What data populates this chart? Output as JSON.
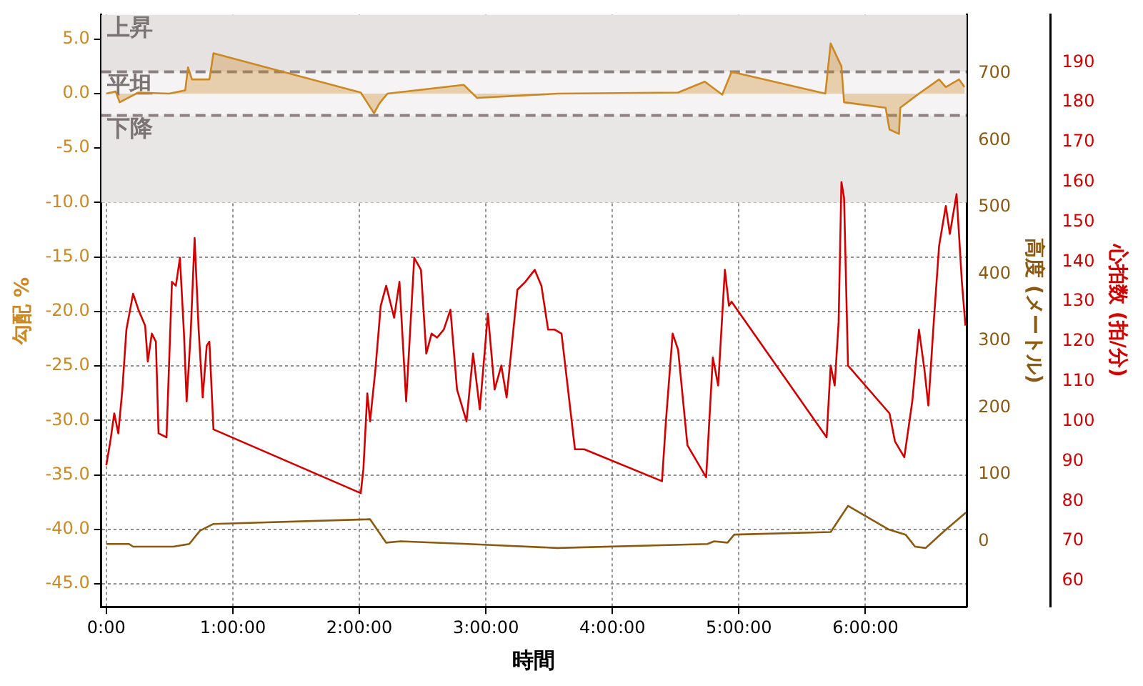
{
  "chart_data": {
    "type": "line",
    "xlabel": "時間",
    "ylabel": "勾配 %",
    "y2label": "高度 (メートル)",
    "y3label": "心拍数 (拍/分)",
    "xlim": [
      -0.04,
      6.8
    ],
    "xticks": [
      {
        "value": 0,
        "label": "0:00"
      },
      {
        "value": 1,
        "label": "1:00:00"
      },
      {
        "value": 2,
        "label": "2:00:00"
      },
      {
        "value": 3,
        "label": "3:00:00"
      },
      {
        "value": 4,
        "label": "4:00:00"
      },
      {
        "value": 5,
        "label": "5:00:00"
      },
      {
        "value": 6,
        "label": "6:00:00"
      }
    ],
    "ylim": [
      -47.1,
      7.25
    ],
    "yticks": [
      {
        "value": 5,
        "label": "5.0"
      },
      {
        "value": 0,
        "label": "0.0"
      },
      {
        "value": -5,
        "label": "-5.0"
      },
      {
        "value": -10,
        "label": "-10.0"
      },
      {
        "value": -15,
        "label": "-15.0"
      },
      {
        "value": -20,
        "label": "-20.0"
      },
      {
        "value": -25,
        "label": "-25.0"
      },
      {
        "value": -30,
        "label": "-30.0"
      },
      {
        "value": -35,
        "label": "-35.0"
      },
      {
        "value": -40,
        "label": "-40.0"
      },
      {
        "value": -45,
        "label": "-45.0"
      }
    ],
    "y2lim": [
      -98,
      788
    ],
    "y2ticks": [
      0,
      100,
      200,
      300,
      400,
      500,
      600,
      700
    ],
    "y3lim": [
      53.5,
      202
    ],
    "y3ticks": [
      60,
      70,
      80,
      90,
      100,
      110,
      120,
      130,
      140,
      150,
      160,
      170,
      180,
      190
    ],
    "grid": true,
    "legend": false,
    "marker": "none",
    "bands": [
      {
        "axis": "y",
        "from": 2,
        "to": 7.25,
        "label": "上昇",
        "color": "#e6e2e2"
      },
      {
        "axis": "y",
        "from": -2,
        "to": 2,
        "label": "平坦",
        "color": "#f5f3f3"
      },
      {
        "axis": "y",
        "from": -10,
        "to": -2,
        "label": "下降",
        "color": "#e9e6e6"
      }
    ],
    "ref_lines": [
      {
        "axis": "y",
        "value": 2,
        "color": "#8c8080",
        "line_style": "dashed"
      },
      {
        "axis": "y",
        "value": -2,
        "color": "#8c8080",
        "line_style": "dashed"
      }
    ],
    "series": [
      {
        "type": "area",
        "axis": "y",
        "color": "#cc8822",
        "x": [
          0,
          0.074,
          0.106,
          0.254,
          0.497,
          0.624,
          0.646,
          0.677,
          0.815,
          0.847,
          2.011,
          2.116,
          2.159,
          2.222,
          2.825,
          2.931,
          3.566,
          4.519,
          4.73,
          4.868,
          4.942,
          5.683,
          5.725,
          5.81,
          5.831,
          6.159,
          6.19,
          6.265,
          6.275,
          6.423,
          6.582,
          6.635,
          6.74,
          6.783
        ],
        "values": [
          0,
          0.2,
          -0.8,
          0.1,
          0,
          0.3,
          2.4,
          1.3,
          1.3,
          3.7,
          0.1,
          -1.8,
          -0.9,
          0,
          0.8,
          -0.4,
          0,
          0.1,
          1.1,
          -0.1,
          2,
          0,
          4.6,
          2.5,
          -0.8,
          -1.3,
          -3.3,
          -3.7,
          -1.3,
          0,
          1.3,
          0.6,
          1.3,
          0.6
        ]
      },
      {
        "type": "line",
        "axis": "y3",
        "color": "#d40000",
        "x": [
          0,
          0.032,
          0.063,
          0.095,
          0.127,
          0.159,
          0.212,
          0.254,
          0.307,
          0.328,
          0.36,
          0.392,
          0.413,
          0.476,
          0.519,
          0.55,
          0.582,
          0.614,
          0.635,
          0.667,
          0.698,
          0.73,
          0.762,
          0.794,
          0.815,
          0.847,
          2.011,
          2.032,
          2.063,
          2.085,
          2.127,
          2.169,
          2.212,
          2.275,
          2.317,
          2.37,
          2.434,
          2.487,
          2.529,
          2.571,
          2.614,
          2.667,
          2.72,
          2.772,
          2.847,
          2.899,
          2.952,
          3.016,
          3.069,
          3.122,
          3.164,
          3.249,
          3.312,
          3.386,
          3.439,
          3.492,
          3.545,
          3.598,
          3.704,
          3.778,
          4.392,
          4.423,
          4.476,
          4.519,
          4.593,
          4.741,
          4.794,
          4.836,
          4.889,
          4.921,
          4.942,
          5.693,
          5.725,
          5.757,
          5.788,
          5.81,
          5.831,
          5.862,
          6.19,
          6.233,
          6.307,
          6.37,
          6.423,
          6.466,
          6.497,
          6.54,
          6.582,
          6.635,
          6.667,
          6.72,
          6.762,
          6.79
        ],
        "values": [
          89,
          95,
          102,
          97,
          108,
          123,
          132,
          128,
          124,
          115,
          122,
          120,
          97,
          96,
          135,
          134,
          141,
          122,
          105,
          122,
          146,
          123,
          106,
          119,
          120,
          98,
          82,
          88,
          107,
          100,
          113,
          129,
          134,
          126,
          135,
          105,
          141,
          138,
          117,
          122,
          121,
          123,
          128,
          108,
          100,
          117,
          103,
          127,
          108,
          114,
          106,
          133,
          135,
          138,
          134,
          123,
          123,
          122,
          93,
          93,
          85,
          100,
          122,
          118,
          94,
          86,
          116,
          109,
          138,
          129,
          130,
          96,
          114,
          109,
          125,
          160,
          156,
          114,
          102,
          95,
          91,
          105,
          123,
          113,
          104,
          125,
          144,
          154,
          147,
          157,
          135,
          124
        ]
      },
      {
        "type": "line",
        "axis": "y2",
        "color": "#8b5a10",
        "x": [
          0,
          0.18,
          0.212,
          0.529,
          0.656,
          0.741,
          0.847,
          2.085,
          2.212,
          2.328,
          2.857,
          3.566,
          4.751,
          4.804,
          4.91,
          4.963,
          5.725,
          5.862,
          6.18,
          6.317,
          6.392,
          6.476,
          6.614,
          6.794
        ],
        "values": [
          -4,
          -4,
          -8,
          -8,
          -4,
          16,
          26,
          33,
          -2,
          0,
          -4,
          -10,
          -4,
          0,
          -2,
          10,
          14,
          53,
          18,
          10,
          -8,
          -10,
          14,
          43
        ]
      }
    ]
  }
}
